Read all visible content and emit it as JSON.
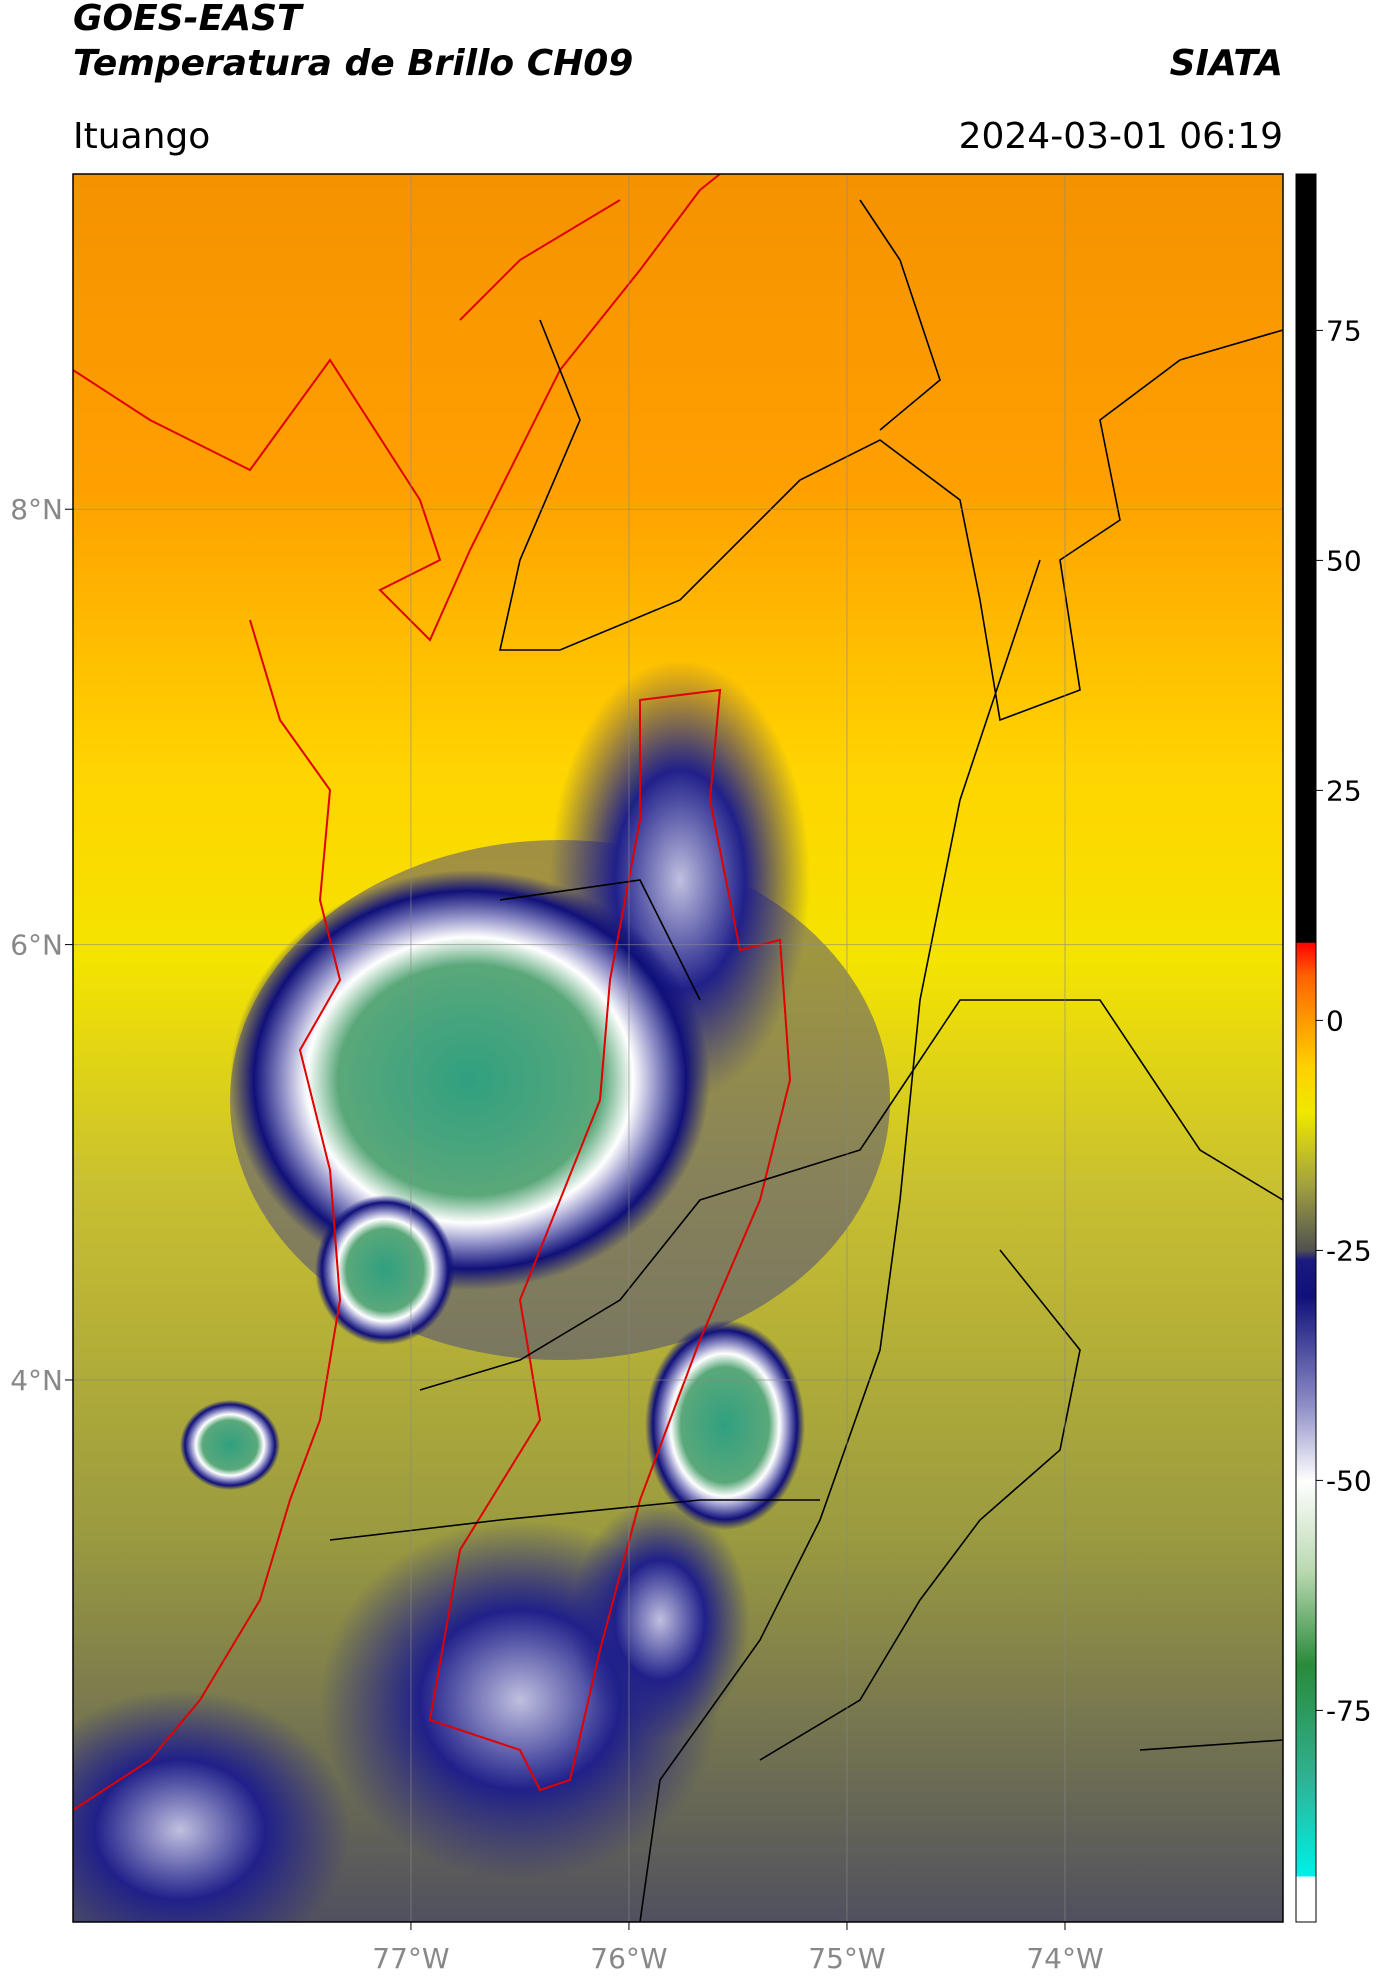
{
  "chart_data": {
    "type": "map",
    "title": "GOES-EAST",
    "subtitle": "Temperatura de Brillo CH09",
    "source": "SIATA",
    "location": "Ituango",
    "datetime": "2024-03-01 06:19",
    "xlim": [
      -78.55,
      -73.0
    ],
    "ylim": [
      1.51,
      9.54
    ],
    "xticks": [
      {
        "value": -77,
        "label": "77°W"
      },
      {
        "value": -76,
        "label": "76°W"
      },
      {
        "value": -75,
        "label": "75°W"
      },
      {
        "value": -74,
        "label": "74°W"
      }
    ],
    "yticks": [
      {
        "value": 8,
        "label": "8°N"
      },
      {
        "value": 6,
        "label": "6°N"
      },
      {
        "value": 4,
        "label": "4°N"
      }
    ],
    "grid": true,
    "colorbar": {
      "lim": [
        -98,
        92
      ],
      "ticks": [
        75,
        50,
        25,
        0,
        -25,
        -50,
        -75
      ],
      "stops": [
        {
          "value": -98,
          "color": "#ffffff"
        },
        {
          "value": -93,
          "color": "#ffffff"
        },
        {
          "value": -93,
          "color": "#00f0e8"
        },
        {
          "value": -82,
          "color": "#30b090"
        },
        {
          "value": -70,
          "color": "#2a8a3a"
        },
        {
          "value": -60,
          "color": "#b8d8b0"
        },
        {
          "value": -50,
          "color": "#ffffff"
        },
        {
          "value": -42,
          "color": "#9090c8"
        },
        {
          "value": -30,
          "color": "#10107a"
        },
        {
          "value": -26,
          "color": "#1a1a80"
        },
        {
          "value": -25,
          "color": "#505050"
        },
        {
          "value": -18,
          "color": "#a0a040"
        },
        {
          "value": -10,
          "color": "#f0e800"
        },
        {
          "value": -5,
          "color": "#ffd000"
        },
        {
          "value": 0,
          "color": "#ff9a00"
        },
        {
          "value": 5,
          "color": "#ff6000"
        },
        {
          "value": 8.5,
          "color": "#ff0000"
        },
        {
          "value": 8.5,
          "color": "#000000"
        },
        {
          "value": 92,
          "color": "#000000"
        }
      ]
    }
  }
}
